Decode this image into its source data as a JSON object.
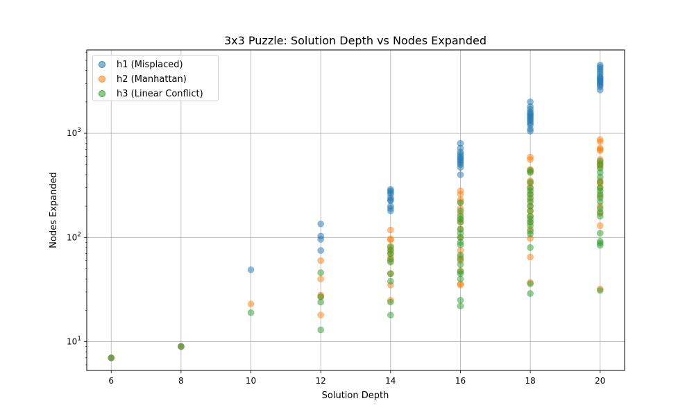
{
  "chart_data": {
    "type": "scatter",
    "title": "3x3 Puzzle: Solution Depth vs Nodes Expanded",
    "xlabel": "Solution Depth",
    "ylabel": "Nodes Expanded",
    "xlim": [
      5.3,
      20.7
    ],
    "ylim": [
      5.3,
      6300
    ],
    "yscale": "log",
    "grid": true,
    "legend_position": "upper-left",
    "x_ticks": [
      {
        "value": 6,
        "label": "6"
      },
      {
        "value": 8,
        "label": "8"
      },
      {
        "value": 10,
        "label": "10"
      },
      {
        "value": 12,
        "label": "12"
      },
      {
        "value": 14,
        "label": "14"
      },
      {
        "value": 16,
        "label": "16"
      },
      {
        "value": 18,
        "label": "18"
      },
      {
        "value": 20,
        "label": "20"
      }
    ],
    "y_ticks": [
      {
        "value": 10,
        "base": "10",
        "exp": "1"
      },
      {
        "value": 100,
        "base": "10",
        "exp": "2"
      },
      {
        "value": 1000,
        "base": "10",
        "exp": "3"
      }
    ],
    "series": [
      {
        "name": "h1 (Misplaced)",
        "color": "#1f77b4",
        "points": [
          [
            6,
            7
          ],
          [
            8,
            9
          ],
          [
            10,
            49
          ],
          [
            12,
            135
          ],
          [
            12,
            103
          ],
          [
            12,
            96
          ],
          [
            12,
            75
          ],
          [
            14,
            290
          ],
          [
            14,
            280
          ],
          [
            14,
            270
          ],
          [
            14,
            260
          ],
          [
            14,
            240
          ],
          [
            14,
            230
          ],
          [
            14,
            225
          ],
          [
            14,
            200
          ],
          [
            14,
            190
          ],
          [
            14,
            180
          ],
          [
            16,
            800
          ],
          [
            16,
            720
          ],
          [
            16,
            660
          ],
          [
            16,
            630
          ],
          [
            16,
            600
          ],
          [
            16,
            580
          ],
          [
            16,
            560
          ],
          [
            16,
            540
          ],
          [
            16,
            520
          ],
          [
            16,
            500
          ],
          [
            16,
            470
          ],
          [
            16,
            400
          ],
          [
            18,
            2000
          ],
          [
            18,
            1800
          ],
          [
            18,
            1700
          ],
          [
            18,
            1600
          ],
          [
            18,
            1550
          ],
          [
            18,
            1500
          ],
          [
            18,
            1450
          ],
          [
            18,
            1400
          ],
          [
            18,
            1350
          ],
          [
            18,
            1300
          ],
          [
            18,
            1250
          ],
          [
            18,
            1200
          ],
          [
            18,
            1100
          ],
          [
            18,
            1050
          ],
          [
            20,
            4500
          ],
          [
            20,
            4300
          ],
          [
            20,
            4100
          ],
          [
            20,
            3900
          ],
          [
            20,
            3700
          ],
          [
            20,
            3500
          ],
          [
            20,
            3400
          ],
          [
            20,
            3300
          ],
          [
            20,
            3200
          ],
          [
            20,
            3100
          ],
          [
            20,
            3000
          ],
          [
            20,
            2900
          ],
          [
            20,
            2800
          ],
          [
            20,
            2600
          ]
        ]
      },
      {
        "name": "h2 (Manhattan)",
        "color": "#ff7f0e",
        "points": [
          [
            6,
            7
          ],
          [
            8,
            9
          ],
          [
            10,
            23
          ],
          [
            12,
            60
          ],
          [
            12,
            40
          ],
          [
            12,
            28
          ],
          [
            12,
            27
          ],
          [
            12,
            18
          ],
          [
            14,
            118
          ],
          [
            14,
            97
          ],
          [
            14,
            95
          ],
          [
            14,
            80
          ],
          [
            14,
            76
          ],
          [
            14,
            70
          ],
          [
            14,
            65
          ],
          [
            14,
            60
          ],
          [
            14,
            45
          ],
          [
            14,
            35
          ],
          [
            14,
            25
          ],
          [
            16,
            280
          ],
          [
            16,
            260
          ],
          [
            16,
            230
          ],
          [
            16,
            220
          ],
          [
            16,
            190
          ],
          [
            16,
            170
          ],
          [
            16,
            150
          ],
          [
            16,
            140
          ],
          [
            16,
            120
          ],
          [
            16,
            100
          ],
          [
            16,
            75
          ],
          [
            16,
            65
          ],
          [
            16,
            60
          ],
          [
            16,
            48
          ],
          [
            16,
            36
          ],
          [
            16,
            35
          ],
          [
            18,
            590
          ],
          [
            18,
            560
          ],
          [
            18,
            450
          ],
          [
            18,
            430
          ],
          [
            18,
            350
          ],
          [
            18,
            330
          ],
          [
            18,
            300
          ],
          [
            18,
            260
          ],
          [
            18,
            230
          ],
          [
            18,
            200
          ],
          [
            18,
            180
          ],
          [
            18,
            160
          ],
          [
            18,
            140
          ],
          [
            18,
            120
          ],
          [
            18,
            98
          ],
          [
            18,
            65
          ],
          [
            18,
            37
          ],
          [
            20,
            870
          ],
          [
            20,
            830
          ],
          [
            20,
            720
          ],
          [
            20,
            700
          ],
          [
            20,
            680
          ],
          [
            20,
            560
          ],
          [
            20,
            520
          ],
          [
            20,
            500
          ],
          [
            20,
            480
          ],
          [
            20,
            350
          ],
          [
            20,
            330
          ],
          [
            20,
            300
          ],
          [
            20,
            250
          ],
          [
            20,
            200
          ],
          [
            20,
            170
          ],
          [
            20,
            130
          ],
          [
            20,
            32
          ]
        ]
      },
      {
        "name": "h3 (Linear Conflict)",
        "color": "#2ca02c",
        "points": [
          [
            6,
            7
          ],
          [
            8,
            9
          ],
          [
            10,
            19
          ],
          [
            12,
            46
          ],
          [
            12,
            27
          ],
          [
            12,
            24
          ],
          [
            12,
            13
          ],
          [
            14,
            82
          ],
          [
            14,
            75
          ],
          [
            14,
            70
          ],
          [
            14,
            62
          ],
          [
            14,
            58
          ],
          [
            14,
            45
          ],
          [
            14,
            38
          ],
          [
            14,
            24
          ],
          [
            14,
            18
          ],
          [
            16,
            215
          ],
          [
            16,
            180
          ],
          [
            16,
            160
          ],
          [
            16,
            150
          ],
          [
            16,
            140
          ],
          [
            16,
            120
          ],
          [
            16,
            110
          ],
          [
            16,
            100
          ],
          [
            16,
            90
          ],
          [
            16,
            85
          ],
          [
            16,
            68
          ],
          [
            16,
            62
          ],
          [
            16,
            55
          ],
          [
            16,
            47
          ],
          [
            16,
            45
          ],
          [
            16,
            40
          ],
          [
            16,
            25
          ],
          [
            16,
            22
          ],
          [
            18,
            440
          ],
          [
            18,
            420
          ],
          [
            18,
            340
          ],
          [
            18,
            300
          ],
          [
            18,
            280
          ],
          [
            18,
            260
          ],
          [
            18,
            240
          ],
          [
            18,
            220
          ],
          [
            18,
            200
          ],
          [
            18,
            180
          ],
          [
            18,
            160
          ],
          [
            18,
            150
          ],
          [
            18,
            140
          ],
          [
            18,
            130
          ],
          [
            18,
            115
          ],
          [
            18,
            108
          ],
          [
            18,
            80
          ],
          [
            18,
            36
          ],
          [
            18,
            29
          ],
          [
            20,
            540
          ],
          [
            20,
            500
          ],
          [
            20,
            460
          ],
          [
            20,
            420
          ],
          [
            20,
            380
          ],
          [
            20,
            340
          ],
          [
            20,
            300
          ],
          [
            20,
            280
          ],
          [
            20,
            260
          ],
          [
            20,
            240
          ],
          [
            20,
            220
          ],
          [
            20,
            190
          ],
          [
            20,
            175
          ],
          [
            20,
            160
          ],
          [
            20,
            110
          ],
          [
            20,
            92
          ],
          [
            20,
            88
          ],
          [
            20,
            84
          ],
          [
            20,
            31
          ]
        ]
      }
    ]
  }
}
